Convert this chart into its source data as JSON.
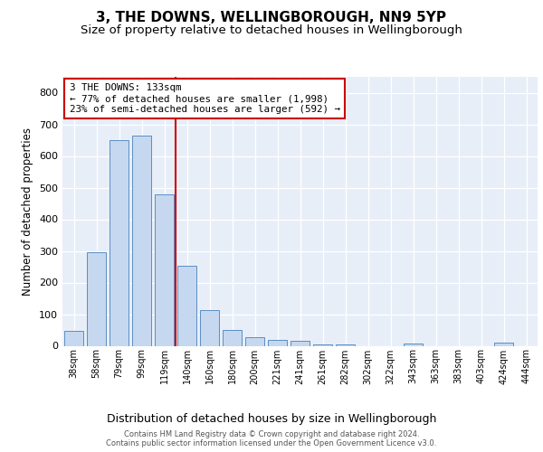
{
  "title1": "3, THE DOWNS, WELLINGBOROUGH, NN9 5YP",
  "title2": "Size of property relative to detached houses in Wellingborough",
  "xlabel": "Distribution of detached houses by size in Wellingborough",
  "ylabel": "Number of detached properties",
  "categories": [
    "38sqm",
    "58sqm",
    "79sqm",
    "99sqm",
    "119sqm",
    "140sqm",
    "160sqm",
    "180sqm",
    "200sqm",
    "221sqm",
    "241sqm",
    "261sqm",
    "282sqm",
    "302sqm",
    "322sqm",
    "343sqm",
    "363sqm",
    "383sqm",
    "403sqm",
    "424sqm",
    "444sqm"
  ],
  "values": [
    46,
    295,
    650,
    665,
    480,
    252,
    112,
    50,
    27,
    18,
    16,
    5,
    3,
    0,
    0,
    8,
    0,
    0,
    0,
    10,
    0
  ],
  "bar_color": "#c5d8f0",
  "bar_edge_color": "#5b8ec4",
  "vline_color": "#cc0000",
  "annotation_text": "3 THE DOWNS: 133sqm\n← 77% of detached houses are smaller (1,998)\n23% of semi-detached houses are larger (592) →",
  "annotation_box_color": "#ffffff",
  "annotation_box_edge_color": "#cc0000",
  "ylim": [
    0,
    850
  ],
  "yticks": [
    0,
    100,
    200,
    300,
    400,
    500,
    600,
    700,
    800
  ],
  "background_color": "#e8eef8",
  "footer_text": "Contains HM Land Registry data © Crown copyright and database right 2024.\nContains public sector information licensed under the Open Government Licence v3.0.",
  "title1_fontsize": 11,
  "title2_fontsize": 9.5,
  "xlabel_fontsize": 9,
  "ylabel_fontsize": 8.5,
  "annotation_fontsize": 7.8,
  "tick_fontsize": 8,
  "xtick_fontsize": 7
}
